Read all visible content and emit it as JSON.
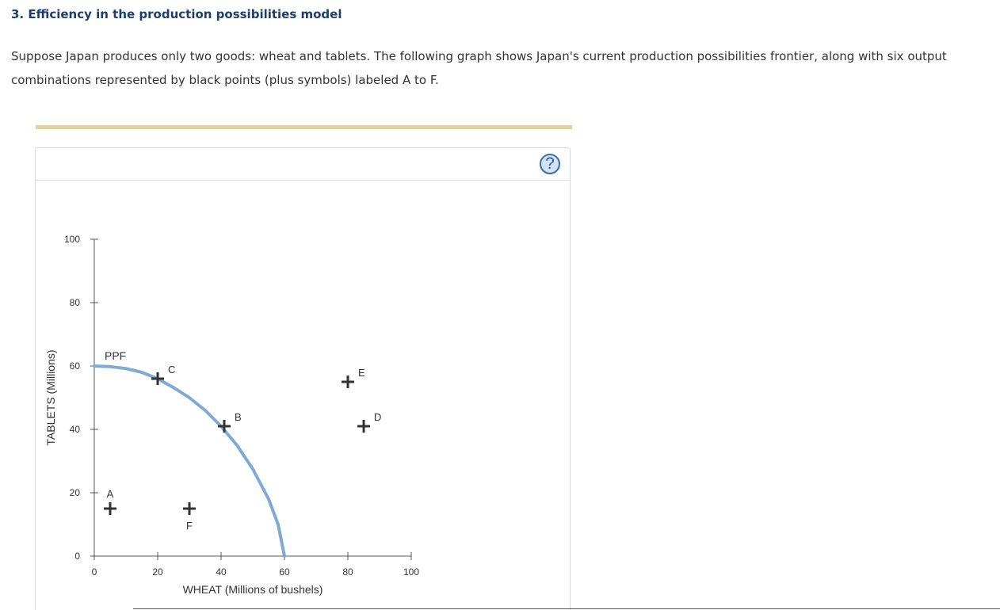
{
  "question": {
    "title": "3. Efficiency in the production possibilities model",
    "intro": "Suppose Japan produces only two goods: wheat and tablets. The following graph shows Japan's current production possibilities frontier, along with six output combinations represented by black points (plus symbols) labeled A to F."
  },
  "panel": {
    "help_label": "?",
    "help_icon": "help-icon"
  },
  "chart_data": {
    "type": "scatter",
    "xlabel": "WHEAT (Millions of bushels)",
    "ylabel": "TABLETS (Millions)",
    "xlim": [
      0,
      100
    ],
    "ylim": [
      0,
      100
    ],
    "xticks": [
      0,
      20,
      40,
      60,
      80,
      100
    ],
    "yticks": [
      0,
      20,
      40,
      60,
      80,
      100
    ],
    "grid": false,
    "curve": {
      "label": "PPF",
      "color": "#80a9d4",
      "points": [
        [
          0,
          60
        ],
        [
          5,
          59.8
        ],
        [
          10,
          59.2
        ],
        [
          15,
          58
        ],
        [
          20,
          56
        ],
        [
          25,
          53.2
        ],
        [
          30,
          50
        ],
        [
          35,
          46
        ],
        [
          40,
          41
        ],
        [
          45,
          35
        ],
        [
          50,
          27.5
        ],
        [
          55,
          18
        ],
        [
          58,
          10
        ],
        [
          60,
          0
        ]
      ]
    },
    "points": [
      {
        "label": "A",
        "x": 5,
        "y": 15,
        "label_pos": "above"
      },
      {
        "label": "B",
        "x": 41,
        "y": 41,
        "label_pos": "above-right"
      },
      {
        "label": "C",
        "x": 20,
        "y": 56,
        "label_pos": "above-right"
      },
      {
        "label": "D",
        "x": 85,
        "y": 41,
        "label_pos": "above-right"
      },
      {
        "label": "E",
        "x": 80,
        "y": 55,
        "label_pos": "above-right"
      },
      {
        "label": "F",
        "x": 30,
        "y": 15,
        "label_pos": "below"
      }
    ],
    "marker_color": "#333333"
  }
}
